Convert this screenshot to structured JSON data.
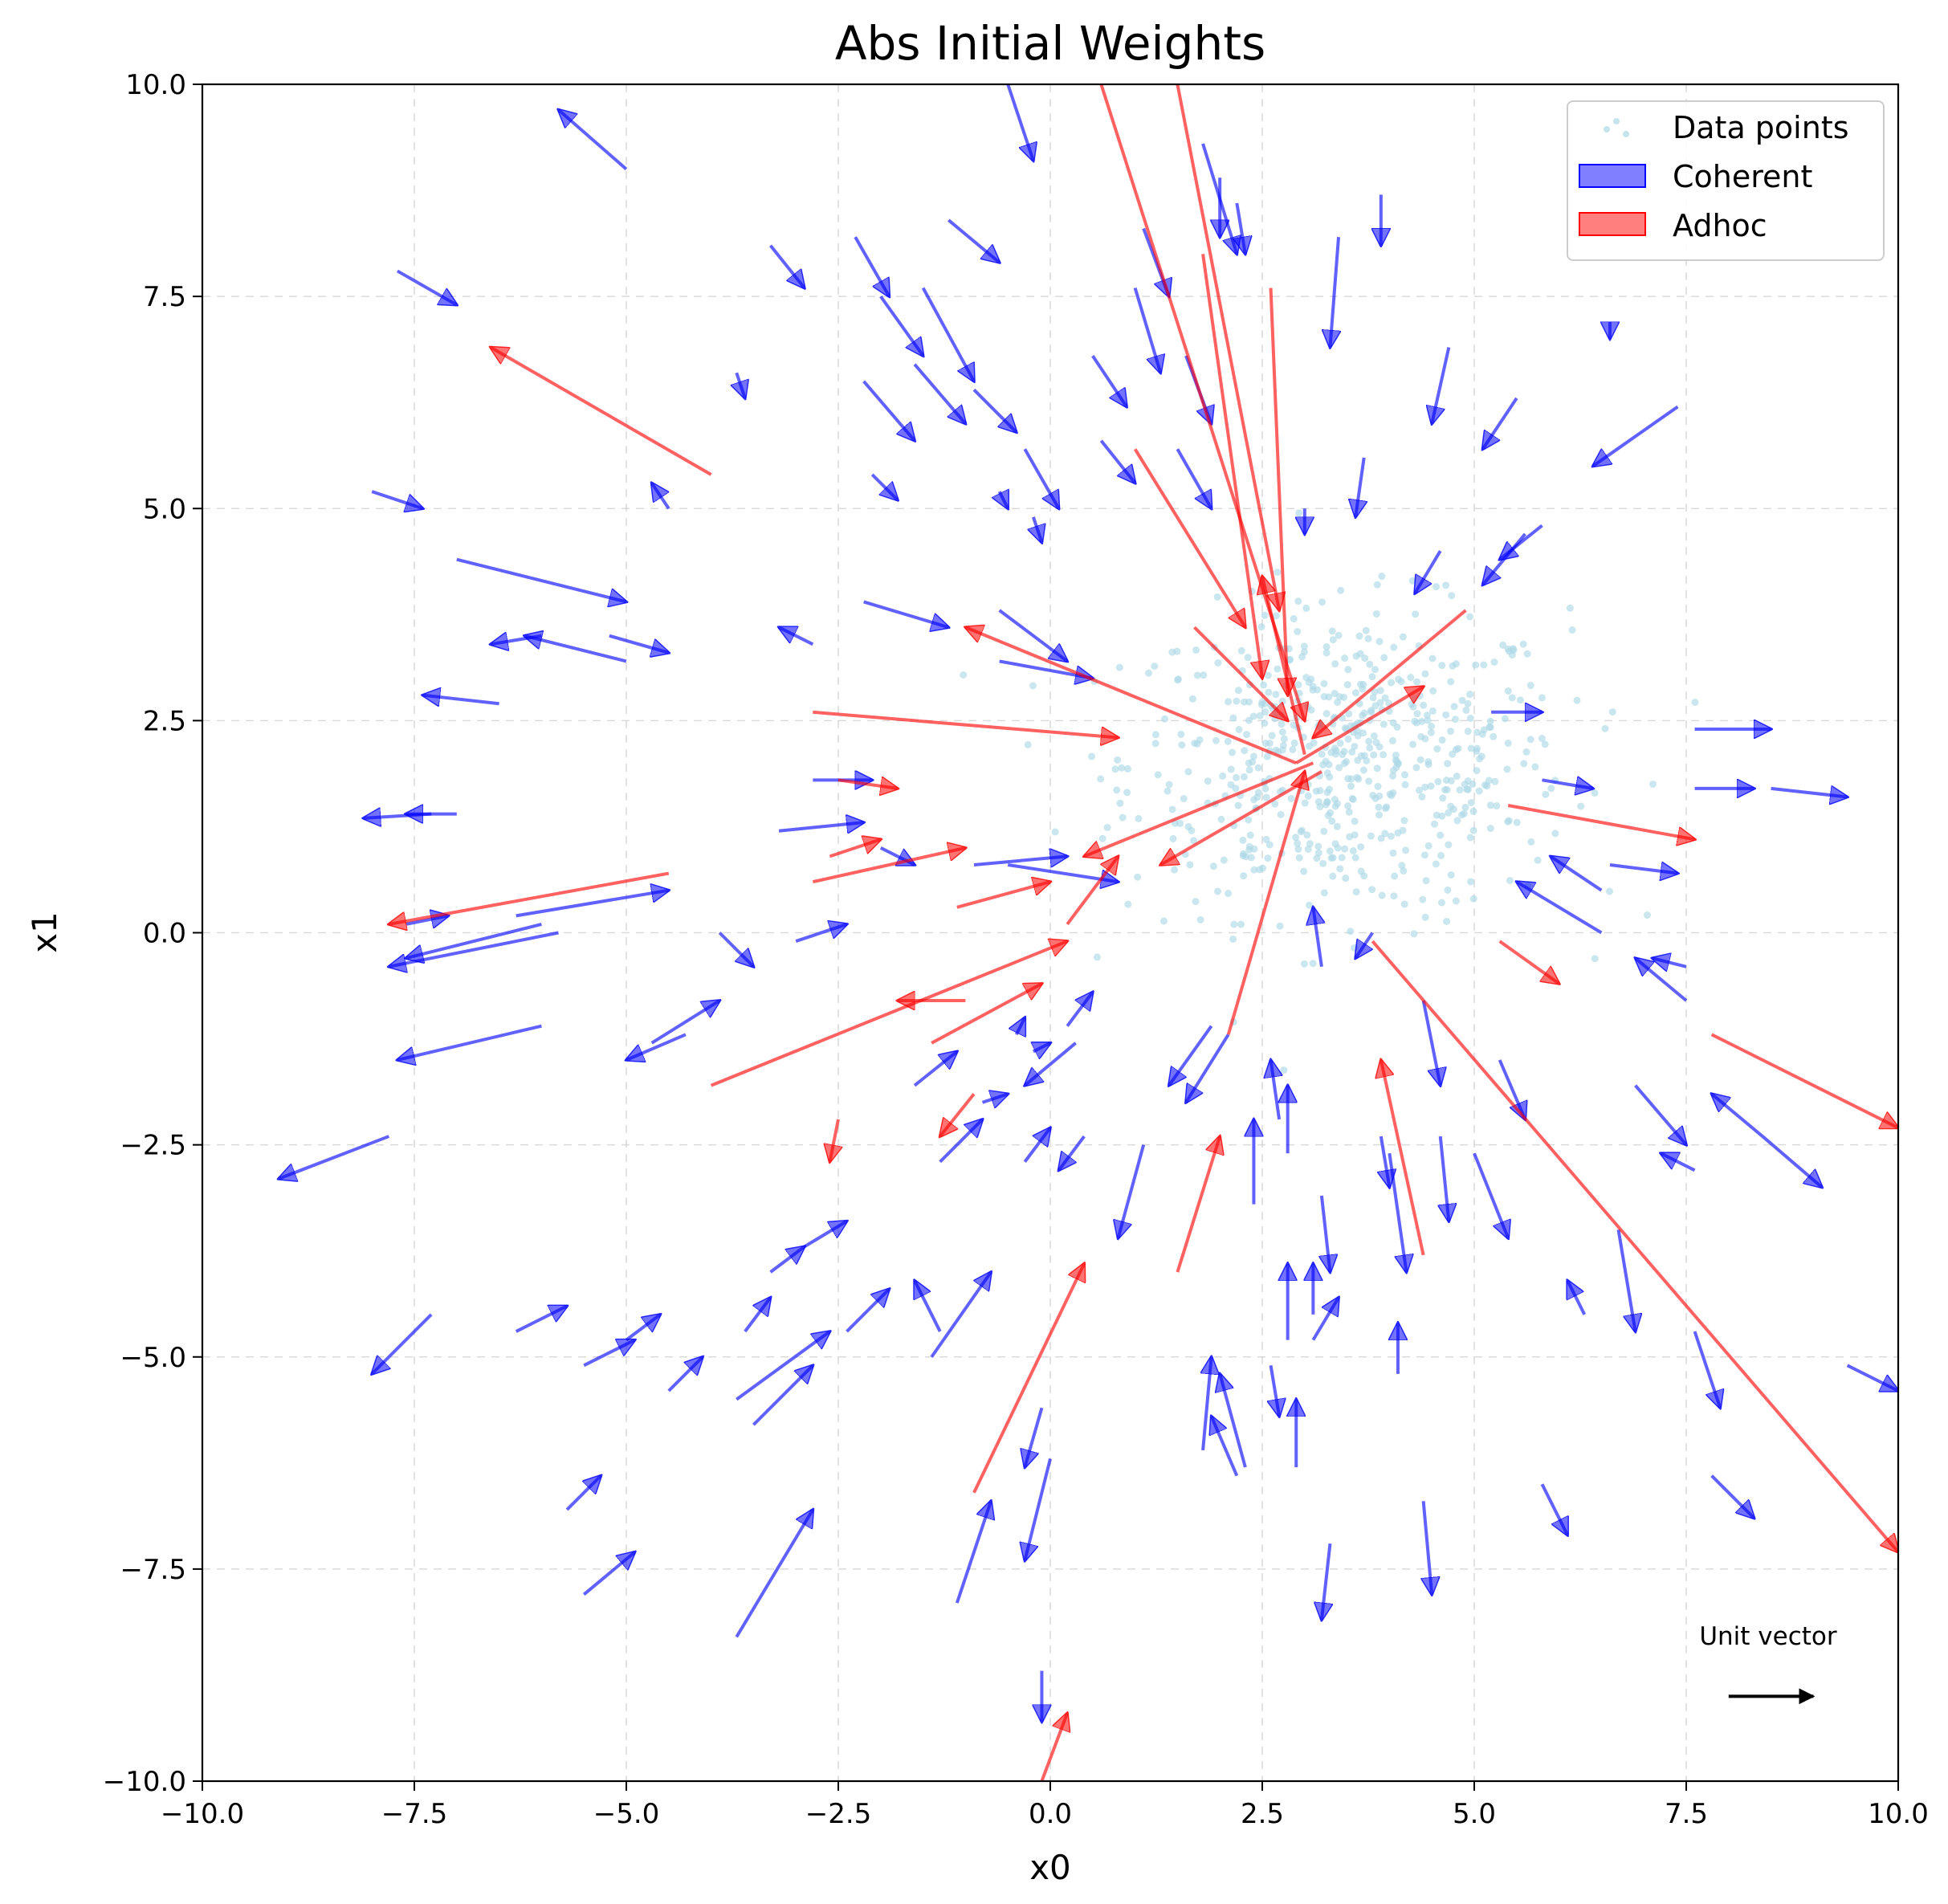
{
  "chart_data": {
    "type": "scatter",
    "title": "Abs Initial Weights",
    "xlabel": "x0",
    "ylabel": "x1",
    "xlim": [
      -10,
      10
    ],
    "ylim": [
      -10,
      10
    ],
    "xticks": [
      -10,
      -7.5,
      -5,
      -2.5,
      0,
      2.5,
      5,
      7.5,
      10
    ],
    "yticks": [
      -10,
      -7.5,
      -5,
      -2.5,
      0,
      2.5,
      5,
      7.5,
      10
    ],
    "xtick_labels": [
      "−10.0",
      "−7.5",
      "−5.0",
      "−2.5",
      "0.0",
      "2.5",
      "5.0",
      "7.5",
      "10.0"
    ],
    "ytick_labels": [
      "−10.0",
      "−7.5",
      "−5.0",
      "−2.5",
      "0.0",
      "2.5",
      "5.0",
      "7.5",
      "10.0"
    ],
    "grid": true,
    "legend": {
      "position": "upper-right",
      "entries": [
        {
          "label": "Data points",
          "kind": "scatter",
          "color": "#add8e6"
        },
        {
          "label": "Coherent",
          "kind": "arrow",
          "color": "#0000ff"
        },
        {
          "label": "Adhoc",
          "kind": "arrow",
          "color": "#ff0000"
        }
      ]
    },
    "annotation": {
      "text": "Unit vector",
      "arrow_from": [
        8.0,
        -9.0
      ],
      "arrow_to": [
        9.0,
        -9.0
      ]
    },
    "colors": {
      "data_points": "#add8e6",
      "coherent": "#0000ff",
      "adhoc": "#ff0000",
      "unit_vector": "#000000"
    },
    "data_points_cluster": {
      "center": [
        3.5,
        2.0
      ],
      "spread": [
        1.3,
        0.9
      ],
      "count": 600
    },
    "coherent_arrows": [
      [
        -5.0,
        9.0,
        -5.8,
        9.7
      ],
      [
        -7.7,
        7.8,
        -7.0,
        7.4
      ],
      [
        -8.0,
        5.2,
        -7.4,
        5.0
      ],
      [
        -7.0,
        4.4,
        -5.0,
        3.9
      ],
      [
        -6.0,
        3.5,
        -6.6,
        3.4
      ],
      [
        -5.2,
        3.5,
        -4.5,
        3.3
      ],
      [
        -5.0,
        3.2,
        -6.2,
        3.5
      ],
      [
        -6.5,
        2.7,
        -7.4,
        2.8
      ],
      [
        -7.0,
        1.4,
        -7.6,
        1.4
      ],
      [
        -7.3,
        1.4,
        -8.1,
        1.35
      ],
      [
        -7.6,
        0.1,
        -7.1,
        0.2
      ],
      [
        -6.3,
        0.2,
        -4.5,
        0.5
      ],
      [
        -5.8,
        0.0,
        -7.8,
        -0.4
      ],
      [
        -6.0,
        0.1,
        -7.6,
        -0.3
      ],
      [
        -6.0,
        -1.1,
        -7.7,
        -1.5
      ],
      [
        -7.8,
        -2.4,
        -9.1,
        -2.9
      ],
      [
        -4.5,
        5.0,
        -4.7,
        5.3
      ],
      [
        -3.7,
        6.6,
        -3.6,
        6.3
      ],
      [
        -3.3,
        8.1,
        -2.9,
        7.6
      ],
      [
        -2.8,
        3.4,
        -3.2,
        3.6
      ],
      [
        -2.8,
        1.8,
        -2.1,
        1.8
      ],
      [
        -3.2,
        1.2,
        -2.2,
        1.3
      ],
      [
        -4.7,
        -1.3,
        -3.9,
        -0.8
      ],
      [
        -4.3,
        -1.2,
        -5.0,
        -1.5
      ],
      [
        -3.9,
        0.0,
        -3.5,
        -0.4
      ],
      [
        -3.0,
        -0.1,
        -2.4,
        0.1
      ],
      [
        -2.0,
        1.0,
        -1.6,
        0.8
      ],
      [
        -2.3,
        8.2,
        -1.9,
        7.5
      ],
      [
        -2.2,
        6.5,
        -1.6,
        5.8
      ],
      [
        -2.1,
        5.4,
        -1.8,
        5.1
      ],
      [
        -2.0,
        7.5,
        -1.5,
        6.8
      ],
      [
        -1.2,
        8.4,
        -0.6,
        7.9
      ],
      [
        -0.5,
        10.0,
        -0.2,
        9.1
      ],
      [
        -1.5,
        7.6,
        -0.9,
        6.5
      ],
      [
        -1.6,
        6.7,
        -1.0,
        6.0
      ],
      [
        -0.9,
        6.4,
        -0.4,
        5.9
      ],
      [
        -0.6,
        5.2,
        -0.5,
        5.0
      ],
      [
        -0.3,
        5.7,
        0.1,
        5.0
      ],
      [
        -0.2,
        4.9,
        -0.1,
        4.6
      ],
      [
        -2.2,
        3.9,
        -1.2,
        3.6
      ],
      [
        -0.6,
        3.8,
        0.2,
        3.2
      ],
      [
        -0.6,
        3.2,
        0.5,
        3.0
      ],
      [
        -0.5,
        0.8,
        0.8,
        0.6
      ],
      [
        -0.9,
        0.8,
        0.2,
        0.9
      ],
      [
        -1.6,
        -1.8,
        -1.1,
        -1.4
      ],
      [
        -0.8,
        -2.0,
        -0.5,
        -1.9
      ],
      [
        -1.3,
        -2.7,
        -0.8,
        -2.2
      ],
      [
        -0.3,
        -2.7,
        0.0,
        -2.3
      ],
      [
        -0.4,
        -1.2,
        -0.3,
        -1.0
      ],
      [
        -0.2,
        -1.4,
        0.0,
        -1.3
      ],
      [
        0.2,
        -1.1,
        0.5,
        -0.7
      ],
      [
        0.3,
        -1.3,
        -0.3,
        -1.8
      ],
      [
        -0.1,
        -5.6,
        -0.3,
        -6.3
      ],
      [
        0.0,
        -6.2,
        -0.3,
        -7.4
      ],
      [
        -1.1,
        -7.9,
        -0.7,
        -6.7
      ],
      [
        -0.1,
        -8.7,
        -0.1,
        -9.3
      ],
      [
        -1.4,
        -5.0,
        -0.7,
        -4.0
      ],
      [
        -1.3,
        -4.7,
        -1.6,
        -4.1
      ],
      [
        -2.4,
        -4.7,
        -1.9,
        -4.2
      ],
      [
        -2.9,
        -3.7,
        -2.4,
        -3.4
      ],
      [
        -3.3,
        -4.0,
        -2.9,
        -3.7
      ],
      [
        -3.6,
        -4.7,
        -3.3,
        -4.3
      ],
      [
        -3.7,
        -5.5,
        -2.6,
        -4.7
      ],
      [
        -3.5,
        -5.8,
        -2.8,
        -5.1
      ],
      [
        -4.5,
        -5.4,
        -4.1,
        -5.0
      ],
      [
        -5.0,
        -4.8,
        -4.6,
        -4.5
      ],
      [
        -5.5,
        -5.1,
        -4.9,
        -4.8
      ],
      [
        -6.3,
        -4.7,
        -5.7,
        -4.4
      ],
      [
        -7.3,
        -4.5,
        -8.0,
        -5.2
      ],
      [
        -5.7,
        -6.8,
        -5.3,
        -6.4
      ],
      [
        -5.5,
        -7.8,
        -4.9,
        -7.3
      ],
      [
        -3.7,
        -8.3,
        -2.8,
        -6.8
      ],
      [
        1.1,
        8.3,
        1.4,
        7.5
      ],
      [
        1.0,
        7.6,
        1.3,
        6.6
      ],
      [
        0.5,
        6.8,
        0.9,
        6.2
      ],
      [
        1.6,
        6.8,
        1.9,
        6.0
      ],
      [
        0.6,
        5.8,
        1.0,
        5.3
      ],
      [
        1.5,
        5.7,
        1.9,
        5.0
      ],
      [
        1.8,
        9.3,
        2.2,
        8.0
      ],
      [
        2.0,
        8.9,
        2.0,
        8.2
      ],
      [
        2.2,
        8.6,
        2.3,
        8.0
      ],
      [
        3.4,
        8.2,
        3.3,
        6.9
      ],
      [
        3.9,
        8.7,
        3.9,
        8.1
      ],
      [
        4.7,
        6.9,
        4.5,
        6.0
      ],
      [
        5.5,
        6.3,
        5.1,
        5.7
      ],
      [
        3.7,
        5.6,
        3.6,
        4.9
      ],
      [
        3.0,
        5.0,
        3.0,
        4.7
      ],
      [
        4.6,
        4.5,
        4.3,
        4.0
      ],
      [
        5.6,
        4.7,
        5.1,
        4.1
      ],
      [
        5.8,
        4.8,
        5.3,
        4.4
      ],
      [
        7.4,
        6.2,
        6.4,
        5.5
      ],
      [
        6.6,
        7.2,
        6.6,
        7.0
      ],
      [
        5.2,
        2.6,
        5.8,
        2.6
      ],
      [
        7.6,
        2.4,
        8.5,
        2.4
      ],
      [
        7.6,
        1.7,
        8.3,
        1.7
      ],
      [
        8.5,
        1.7,
        9.4,
        1.6
      ],
      [
        5.8,
        1.8,
        6.4,
        1.7
      ],
      [
        6.6,
        0.8,
        7.4,
        0.7
      ],
      [
        6.5,
        0.5,
        5.9,
        0.9
      ],
      [
        6.5,
        0.0,
        5.5,
        0.6
      ],
      [
        7.5,
        -0.4,
        7.1,
        -0.3
      ],
      [
        7.5,
        -0.8,
        6.9,
        -0.3
      ],
      [
        6.9,
        -1.8,
        7.5,
        -2.5
      ],
      [
        7.6,
        -2.8,
        7.2,
        -2.6
      ],
      [
        8.4,
        -2.4,
        9.1,
        -3.0
      ],
      [
        8.4,
        -2.4,
        7.8,
        -1.9
      ],
      [
        7.6,
        -4.7,
        7.9,
        -5.6
      ],
      [
        7.8,
        -6.4,
        8.3,
        -6.9
      ],
      [
        9.4,
        -5.1,
        10.0,
        -5.4
      ],
      [
        6.7,
        -3.5,
        6.9,
        -4.7
      ],
      [
        6.3,
        -4.5,
        6.1,
        -4.1
      ],
      [
        5.8,
        -6.5,
        6.1,
        -7.1
      ],
      [
        4.1,
        -5.2,
        4.1,
        -4.6
      ],
      [
        4.4,
        -6.7,
        4.5,
        -7.8
      ],
      [
        3.3,
        -7.2,
        3.2,
        -8.1
      ],
      [
        2.9,
        -6.3,
        2.9,
        -5.5
      ],
      [
        2.2,
        -6.4,
        1.9,
        -5.7
      ],
      [
        2.3,
        -6.3,
        2.0,
        -5.2
      ],
      [
        1.8,
        -6.1,
        1.9,
        -5.0
      ],
      [
        2.6,
        -5.1,
        2.7,
        -5.7
      ],
      [
        2.8,
        -4.8,
        2.8,
        -3.9
      ],
      [
        3.1,
        -4.8,
        3.4,
        -4.3
      ],
      [
        3.1,
        -4.5,
        3.1,
        -3.9
      ],
      [
        3.2,
        -3.1,
        3.3,
        -4.0
      ],
      [
        2.4,
        -3.2,
        2.4,
        -2.2
      ],
      [
        2.8,
        -2.6,
        2.8,
        -1.8
      ],
      [
        2.7,
        -2.2,
        2.6,
        -1.5
      ],
      [
        1.1,
        -2.5,
        0.8,
        -3.6
      ],
      [
        0.4,
        -2.4,
        0.1,
        -2.8
      ],
      [
        2.1,
        -1.2,
        1.6,
        -2.0
      ],
      [
        1.9,
        -1.1,
        1.4,
        -1.8
      ],
      [
        3.9,
        -2.4,
        4.0,
        -3.0
      ],
      [
        4.0,
        -2.6,
        4.2,
        -4.0
      ],
      [
        4.6,
        -2.4,
        4.7,
        -3.4
      ],
      [
        5.0,
        -2.6,
        5.4,
        -3.6
      ],
      [
        5.3,
        -1.5,
        5.6,
        -2.2
      ],
      [
        4.4,
        -0.8,
        4.6,
        -1.8
      ],
      [
        3.8,
        0.0,
        3.6,
        -0.3
      ],
      [
        3.2,
        -0.4,
        3.1,
        0.3
      ]
    ],
    "adhoc_arrows": [
      [
        -4.0,
        5.4,
        -6.6,
        6.9
      ],
      [
        -4.5,
        0.7,
        -7.8,
        0.1
      ],
      [
        -4.0,
        -1.8,
        0.2,
        -0.1
      ],
      [
        -2.8,
        2.6,
        0.8,
        2.3
      ],
      [
        -2.5,
        1.8,
        -1.8,
        1.7
      ],
      [
        -2.6,
        0.9,
        -2.0,
        1.1
      ],
      [
        -2.8,
        0.6,
        -1.0,
        1.0
      ],
      [
        -1.1,
        0.3,
        0.0,
        0.6
      ],
      [
        -1.4,
        -1.3,
        -0.1,
        -0.6
      ],
      [
        -1.0,
        -0.8,
        -1.8,
        -0.8
      ],
      [
        0.2,
        0.1,
        0.8,
        0.9
      ],
      [
        -2.5,
        -2.2,
        -2.6,
        -2.7
      ],
      [
        -0.9,
        -1.9,
        -1.3,
        -2.4
      ],
      [
        -0.9,
        -6.6,
        0.4,
        -3.9
      ],
      [
        -0.1,
        -10.0,
        0.2,
        -9.2
      ],
      [
        0.6,
        10.0,
        3.0,
        2.5
      ],
      [
        1.5,
        10.0,
        2.7,
        3.8
      ],
      [
        2.6,
        7.6,
        2.8,
        2.8
      ],
      [
        1.8,
        8.0,
        2.5,
        3.0
      ],
      [
        1.0,
        5.7,
        2.3,
        3.6
      ],
      [
        1.7,
        3.6,
        2.8,
        2.5
      ],
      [
        2.1,
        -1.2,
        3.0,
        1.9
      ],
      [
        1.5,
        -4.0,
        2.0,
        -2.4
      ],
      [
        4.4,
        -3.8,
        3.9,
        -1.5
      ],
      [
        3.8,
        -0.1,
        10.0,
        -7.3
      ],
      [
        5.3,
        -0.1,
        6.0,
        -0.6
      ],
      [
        5.4,
        1.5,
        7.6,
        1.1
      ],
      [
        4.9,
        3.8,
        3.1,
        2.3
      ],
      [
        7.8,
        -1.2,
        10.0,
        -2.3
      ],
      [
        2.9,
        2.0,
        4.4,
        2.9
      ],
      [
        3.1,
        2.0,
        0.4,
        0.9
      ],
      [
        3.2,
        1.9,
        1.3,
        0.8
      ],
      [
        3.0,
        2.1,
        2.5,
        4.2
      ],
      [
        2.9,
        2.0,
        -1.0,
        3.6
      ]
    ]
  }
}
